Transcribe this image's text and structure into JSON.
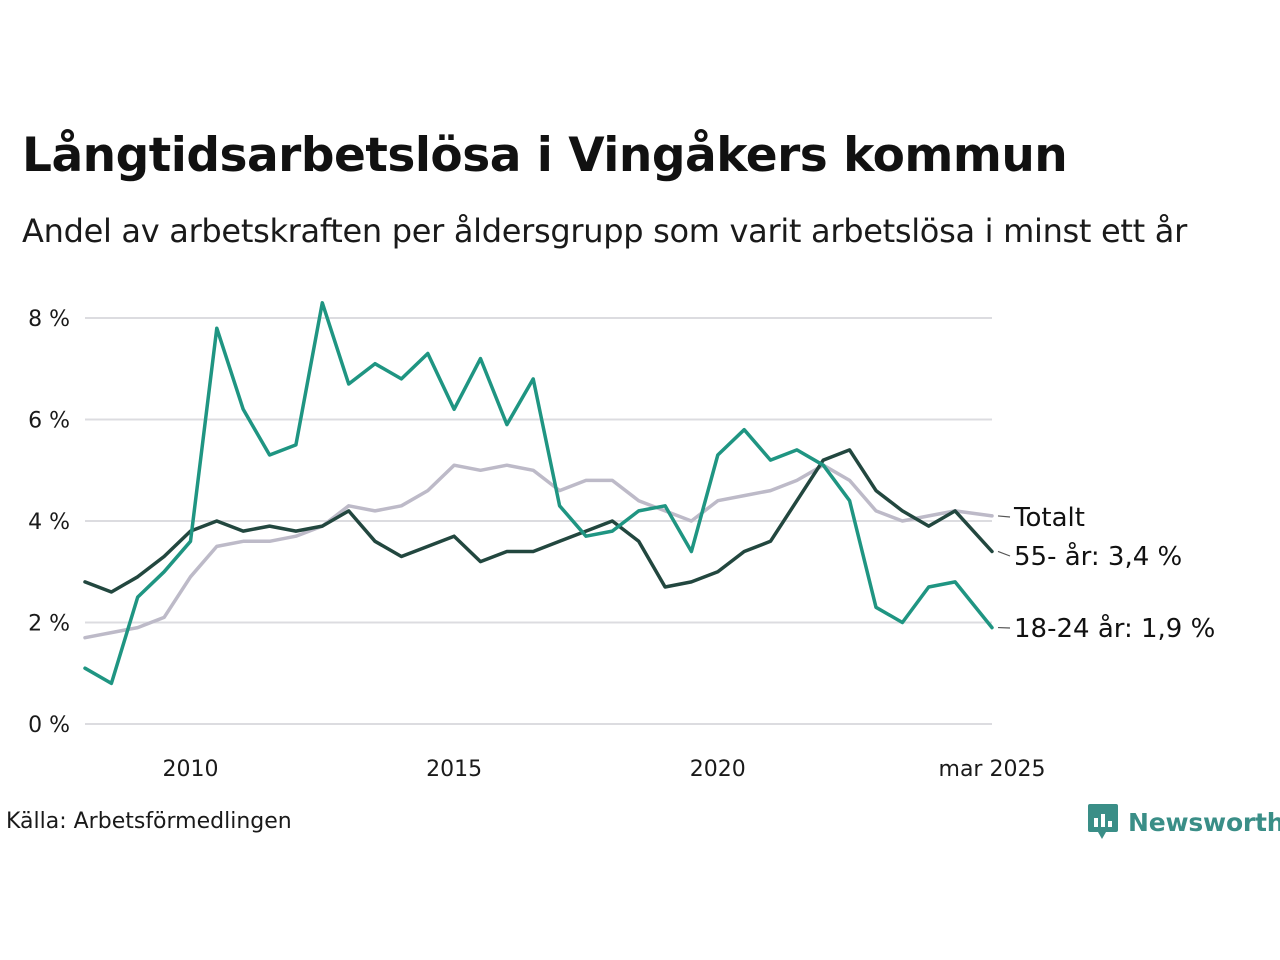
{
  "header": {
    "title": "Långtidsarbetslösa i Vingåkers kommun",
    "subtitle": "Andel av arbetskraften per åldersgrupp som varit arbetslösa i minst ett år"
  },
  "footer": {
    "source": "Källa: Arbetsförmedlingen",
    "brand": "Newsworthy"
  },
  "chart_data": {
    "type": "line",
    "x_ticks": [
      "2010",
      "2015",
      "2020",
      "mar 2025"
    ],
    "y_ticks": [
      "0 %",
      "2 %",
      "4 %",
      "6 %",
      "8 %"
    ],
    "ylim": [
      0,
      8.4
    ],
    "xlim": [
      2008.0,
      2025.2
    ],
    "grid": true,
    "legend": "direct labels at right end of lines",
    "series": [
      {
        "name": "Totalt",
        "end_label": "Totalt",
        "color": "#bdbac8",
        "x": [
          2008.0,
          2008.5,
          2009.0,
          2009.5,
          2010.0,
          2010.5,
          2011.0,
          2011.5,
          2012.0,
          2012.5,
          2013.0,
          2013.5,
          2014.0,
          2014.5,
          2015.0,
          2015.5,
          2016.0,
          2016.5,
          2017.0,
          2017.5,
          2018.0,
          2018.5,
          2019.0,
          2019.5,
          2020.0,
          2020.5,
          2021.0,
          2021.5,
          2022.0,
          2022.5,
          2023.0,
          2023.5,
          2024.0,
          2024.5,
          2025.2
        ],
        "values": [
          1.7,
          1.8,
          1.9,
          2.1,
          2.9,
          3.5,
          3.6,
          3.6,
          3.7,
          3.9,
          4.3,
          4.2,
          4.3,
          4.6,
          5.1,
          5.0,
          5.1,
          5.0,
          4.6,
          4.8,
          4.8,
          4.4,
          4.2,
          4.0,
          4.4,
          4.5,
          4.6,
          4.8,
          5.1,
          4.8,
          4.2,
          4.0,
          4.1,
          4.2,
          4.1
        ]
      },
      {
        "name": "55- år",
        "end_label": "55- år: 3,4 %",
        "color": "#22473f",
        "x": [
          2008.0,
          2008.5,
          2009.0,
          2009.5,
          2010.0,
          2010.5,
          2011.0,
          2011.5,
          2012.0,
          2012.5,
          2013.0,
          2013.5,
          2014.0,
          2014.5,
          2015.0,
          2015.5,
          2016.0,
          2016.5,
          2017.0,
          2017.5,
          2018.0,
          2018.5,
          2019.0,
          2019.5,
          2020.0,
          2020.5,
          2021.0,
          2021.5,
          2022.0,
          2022.5,
          2023.0,
          2023.5,
          2024.0,
          2024.5,
          2025.2
        ],
        "values": [
          2.8,
          2.6,
          2.9,
          3.3,
          3.8,
          4.0,
          3.8,
          3.9,
          3.8,
          3.9,
          4.2,
          3.6,
          3.3,
          3.5,
          3.7,
          3.2,
          3.4,
          3.4,
          3.6,
          3.8,
          4.0,
          3.6,
          2.7,
          2.8,
          3.0,
          3.4,
          3.6,
          4.4,
          5.2,
          5.4,
          4.6,
          4.2,
          3.9,
          4.2,
          3.4
        ]
      },
      {
        "name": "18-24 år",
        "end_label": "18-24 år: 1,9 %",
        "color": "#1f9582",
        "x": [
          2008.0,
          2008.5,
          2009.0,
          2009.5,
          2010.0,
          2010.5,
          2011.0,
          2011.5,
          2012.0,
          2012.5,
          2013.0,
          2013.5,
          2014.0,
          2014.5,
          2015.0,
          2015.5,
          2016.0,
          2016.5,
          2017.0,
          2017.5,
          2018.0,
          2018.5,
          2019.0,
          2019.5,
          2020.0,
          2020.5,
          2021.0,
          2021.5,
          2022.0,
          2022.5,
          2023.0,
          2023.5,
          2024.0,
          2024.5,
          2025.2
        ],
        "values": [
          1.1,
          0.8,
          2.5,
          3.0,
          3.6,
          7.8,
          6.2,
          5.3,
          5.5,
          8.3,
          6.7,
          7.1,
          6.8,
          7.3,
          6.2,
          7.2,
          5.9,
          6.8,
          4.3,
          3.7,
          3.8,
          4.2,
          4.3,
          3.4,
          5.3,
          5.8,
          5.2,
          5.4,
          5.1,
          4.4,
          2.3,
          2.0,
          2.7,
          2.8,
          1.9
        ]
      }
    ]
  }
}
